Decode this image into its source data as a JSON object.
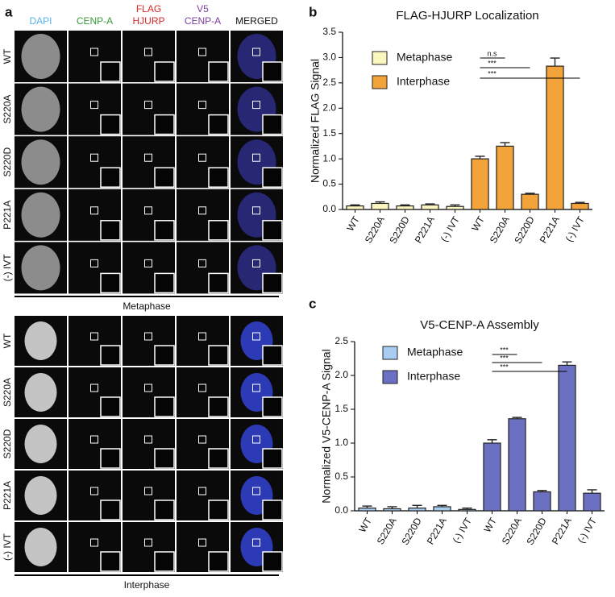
{
  "panel_a": {
    "label": "a",
    "columns": [
      [
        "DAPI"
      ],
      [
        "CENP-A"
      ],
      [
        "FLAG",
        "HJURP"
      ],
      [
        "V5",
        "CENP-A"
      ],
      [
        "MERGED"
      ]
    ],
    "groups": [
      {
        "name": "Metaphase",
        "rows": [
          "WT",
          "S220A",
          "S220D",
          "P221A",
          "(-) IVT"
        ]
      },
      {
        "name": "Interphase",
        "rows": [
          "WT",
          "S220A",
          "S220D",
          "P221A",
          "(-) IVT"
        ]
      }
    ]
  },
  "chart_data": [
    {
      "type": "bar",
      "panel": "b",
      "title": "FLAG-HJURP Localization",
      "y_label": "Normalized FLAG Signal",
      "categories": [
        "WT",
        "S220A",
        "S220D",
        "P221A",
        "(-) IVT",
        "WT",
        "S220A",
        "S220D",
        "P221A",
        "(-) IVT"
      ],
      "series": [
        {
          "name": "Metaphase",
          "color": "#fbf6bf",
          "values": [
            0.07,
            0.12,
            0.07,
            0.09,
            0.06,
            null,
            null,
            null,
            null,
            null
          ],
          "errors": [
            0.02,
            0.03,
            0.02,
            0.02,
            0.03,
            null,
            null,
            null,
            null,
            null
          ]
        },
        {
          "name": "Interphase",
          "color": "#f2a43a",
          "values": [
            null,
            null,
            null,
            null,
            null,
            1.0,
            1.25,
            0.3,
            2.83,
            0.12
          ],
          "errors": [
            null,
            null,
            null,
            null,
            null,
            0.05,
            0.07,
            0.02,
            0.16,
            0.02
          ]
        }
      ],
      "significance": [
        "n.s",
        "***",
        "***"
      ],
      "ylim": [
        0,
        3.5
      ],
      "yticks": [
        {
          "value": 0,
          "label": "0.0"
        },
        0.5,
        {
          "value": 1,
          "label": "1.0"
        },
        1.5,
        {
          "value": 2,
          "label": "2.0"
        },
        2.5,
        {
          "value": 3,
          "label": "3.0"
        },
        3.5
      ]
    },
    {
      "type": "bar",
      "panel": "c",
      "title": "V5-CENP-A Assembly",
      "y_label": "Normalized V5-CENP-A Signal",
      "categories": [
        "WT",
        "S220A",
        "S220D",
        "P221A",
        "(-) IVT",
        "WT",
        "S220A",
        "S220D",
        "P221A",
        "(-) IVT"
      ],
      "series": [
        {
          "name": "Metaphase",
          "color": "#a9cdf0",
          "values": [
            0.04,
            0.03,
            0.04,
            0.06,
            0.02,
            null,
            null,
            null,
            null,
            null
          ],
          "errors": [
            0.03,
            0.03,
            0.04,
            0.02,
            0.02,
            null,
            null,
            null,
            null,
            null
          ]
        },
        {
          "name": "Interphase",
          "color": "#6b70c2",
          "values": [
            null,
            null,
            null,
            null,
            null,
            1.0,
            1.36,
            0.28,
            2.15,
            0.26
          ],
          "errors": [
            null,
            null,
            null,
            null,
            null,
            0.05,
            0.02,
            0.02,
            0.05,
            0.05
          ]
        }
      ],
      "significance": [
        "***",
        "***",
        "***"
      ],
      "ylim": [
        0,
        2.5
      ],
      "yticks": [
        {
          "value": 0,
          "label": "0.0"
        },
        0.5,
        {
          "value": 1,
          "label": "1.0"
        },
        1.5,
        {
          "value": 2,
          "label": "2.0"
        },
        2.5
      ]
    }
  ]
}
